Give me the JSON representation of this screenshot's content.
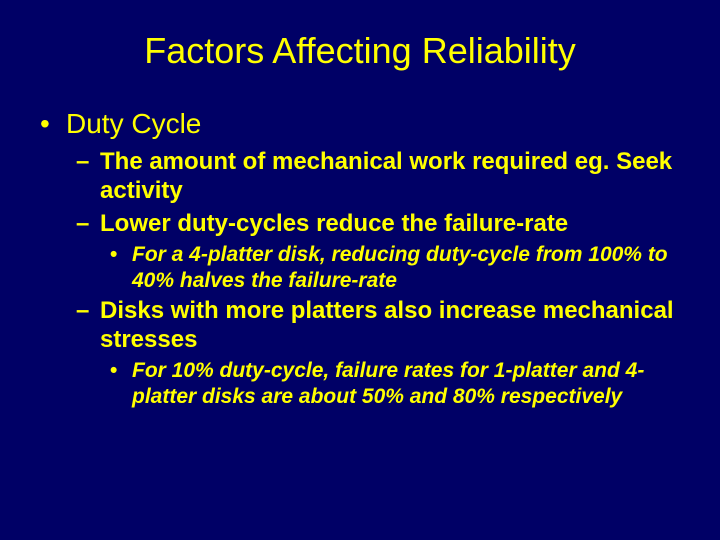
{
  "slide": {
    "background_color": "#000066",
    "text_color": "#ffff00",
    "title": "Factors Affecting Reliability",
    "title_fontsize": 36,
    "level1_fontsize": 28,
    "level2_fontsize": 24,
    "level3_fontsize": 21,
    "bullets": {
      "l1": "•",
      "l2": "–",
      "l3": "•"
    },
    "items": [
      {
        "level": 1,
        "text": "Duty Cycle"
      },
      {
        "level": 2,
        "text": "The amount of mechanical work required eg. Seek activity"
      },
      {
        "level": 2,
        "text": "Lower duty-cycles reduce the failure-rate"
      },
      {
        "level": 3,
        "text": "For a 4-platter disk, reducing duty-cycle from 100% to 40% halves the failure-rate"
      },
      {
        "level": 2,
        "text": "Disks with more platters also increase mechanical stresses"
      },
      {
        "level": 3,
        "text": "For 10% duty-cycle, failure rates for 1-platter and 4-platter disks are about 50% and 80% respectively"
      }
    ]
  }
}
